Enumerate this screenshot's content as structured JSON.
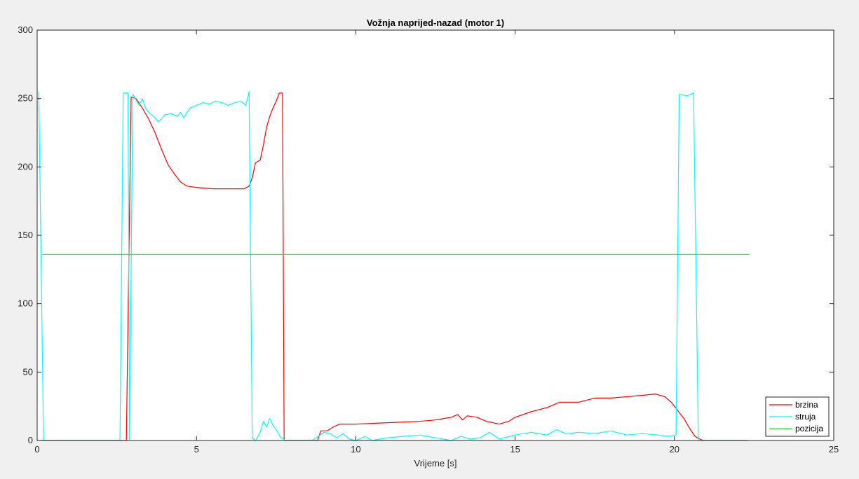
{
  "chart_data": {
    "type": "line",
    "title": "Vožnja naprijed-nazad (motor 1)",
    "xlabel": "Vrijeme [s]",
    "ylabel": "",
    "xlim": [
      0,
      25
    ],
    "ylim": [
      0,
      300
    ],
    "xticks": [
      0,
      5,
      10,
      15,
      20,
      25
    ],
    "yticks": [
      0,
      50,
      100,
      150,
      200,
      250,
      300
    ],
    "xtick_labels": [
      "0",
      "5",
      "10",
      "15",
      "20",
      "25"
    ],
    "ytick_labels": [
      "0",
      "50",
      "100",
      "150",
      "200",
      "250",
      "300"
    ],
    "grid": false,
    "legend_position": "bottom-right",
    "series": [
      {
        "name": "brzina",
        "color": "#ff0000",
        "points": [
          [
            0.1,
            0
          ],
          [
            2.7,
            0
          ],
          [
            2.8,
            0
          ],
          [
            2.95,
            251
          ],
          [
            3.1,
            250
          ],
          [
            3.3,
            243
          ],
          [
            3.5,
            235
          ],
          [
            3.7,
            225
          ],
          [
            3.9,
            213
          ],
          [
            4.1,
            202
          ],
          [
            4.3,
            195
          ],
          [
            4.5,
            189
          ],
          [
            4.7,
            186
          ],
          [
            5.0,
            185
          ],
          [
            5.5,
            184
          ],
          [
            6.0,
            184
          ],
          [
            6.3,
            184
          ],
          [
            6.5,
            184
          ],
          [
            6.65,
            186
          ],
          [
            6.75,
            192
          ],
          [
            6.85,
            203
          ],
          [
            7.0,
            205
          ],
          [
            7.1,
            216
          ],
          [
            7.2,
            229
          ],
          [
            7.3,
            237
          ],
          [
            7.4,
            243
          ],
          [
            7.5,
            248
          ],
          [
            7.6,
            254
          ],
          [
            7.7,
            254
          ],
          [
            7.75,
            0
          ],
          [
            8.8,
            0
          ],
          [
            8.9,
            7
          ],
          [
            9.1,
            7
          ],
          [
            9.3,
            10
          ],
          [
            9.5,
            12
          ],
          [
            10,
            12
          ],
          [
            11,
            13
          ],
          [
            12,
            14
          ],
          [
            12.5,
            15
          ],
          [
            13.0,
            17
          ],
          [
            13.2,
            19
          ],
          [
            13.35,
            15
          ],
          [
            13.5,
            18
          ],
          [
            13.8,
            17
          ],
          [
            14.1,
            14
          ],
          [
            14.5,
            12
          ],
          [
            14.8,
            14
          ],
          [
            15.0,
            17
          ],
          [
            15.5,
            21
          ],
          [
            16.0,
            24
          ],
          [
            16.4,
            28
          ],
          [
            16.7,
            28
          ],
          [
            17.0,
            28
          ],
          [
            17.5,
            31
          ],
          [
            18.0,
            31
          ],
          [
            18.5,
            32
          ],
          [
            19.0,
            33
          ],
          [
            19.4,
            34
          ],
          [
            19.7,
            32
          ],
          [
            19.9,
            28
          ],
          [
            20.1,
            22
          ],
          [
            20.3,
            16
          ],
          [
            20.5,
            8
          ],
          [
            20.65,
            3
          ],
          [
            20.8,
            1
          ],
          [
            20.9,
            0
          ],
          [
            22.3,
            0
          ]
        ]
      },
      {
        "name": "struja",
        "color": "#00ffff",
        "points": [
          [
            0.05,
            255
          ],
          [
            0.2,
            0
          ],
          [
            2.6,
            0
          ],
          [
            2.7,
            254
          ],
          [
            2.85,
            254
          ],
          [
            2.9,
            0
          ],
          [
            3.0,
            253
          ],
          [
            3.1,
            249
          ],
          [
            3.2,
            245
          ],
          [
            3.3,
            250
          ],
          [
            3.4,
            243
          ],
          [
            3.5,
            240
          ],
          [
            3.6,
            238
          ],
          [
            3.7,
            236
          ],
          [
            3.8,
            233
          ],
          [
            3.9,
            235
          ],
          [
            4.0,
            238
          ],
          [
            4.2,
            239
          ],
          [
            4.4,
            237
          ],
          [
            4.5,
            240
          ],
          [
            4.6,
            236
          ],
          [
            4.8,
            243
          ],
          [
            5.0,
            245
          ],
          [
            5.2,
            247
          ],
          [
            5.4,
            246
          ],
          [
            5.6,
            248
          ],
          [
            5.8,
            247
          ],
          [
            6.0,
            245
          ],
          [
            6.2,
            247
          ],
          [
            6.4,
            248
          ],
          [
            6.55,
            245
          ],
          [
            6.65,
            255
          ],
          [
            6.75,
            2
          ],
          [
            6.85,
            0
          ],
          [
            7.0,
            6
          ],
          [
            7.1,
            14
          ],
          [
            7.2,
            10
          ],
          [
            7.3,
            16
          ],
          [
            7.4,
            11
          ],
          [
            7.5,
            8
          ],
          [
            7.65,
            2
          ],
          [
            7.8,
            0
          ],
          [
            8.6,
            0
          ],
          [
            8.7,
            1
          ],
          [
            9.0,
            6
          ],
          [
            9.2,
            5
          ],
          [
            9.4,
            2
          ],
          [
            9.6,
            5
          ],
          [
            9.8,
            1
          ],
          [
            10.0,
            0
          ],
          [
            10.3,
            3
          ],
          [
            10.5,
            0
          ],
          [
            11.0,
            2
          ],
          [
            11.5,
            3
          ],
          [
            12.0,
            4
          ],
          [
            12.5,
            2
          ],
          [
            13.0,
            0
          ],
          [
            13.3,
            3
          ],
          [
            13.6,
            1
          ],
          [
            13.9,
            2
          ],
          [
            14.2,
            6
          ],
          [
            14.5,
            1
          ],
          [
            15.0,
            4
          ],
          [
            15.5,
            6
          ],
          [
            16.0,
            4
          ],
          [
            16.3,
            8
          ],
          [
            16.6,
            5
          ],
          [
            17.0,
            6
          ],
          [
            17.5,
            5
          ],
          [
            18.0,
            7
          ],
          [
            18.5,
            4
          ],
          [
            19.0,
            5
          ],
          [
            19.5,
            4
          ],
          [
            19.8,
            3
          ],
          [
            20.05,
            4
          ],
          [
            20.15,
            253
          ],
          [
            20.4,
            252
          ],
          [
            20.6,
            254
          ],
          [
            20.75,
            0
          ],
          [
            22.3,
            0
          ]
        ]
      },
      {
        "name": "pozicija",
        "color": "#00ff00",
        "points": [
          [
            0.15,
            136
          ],
          [
            22.35,
            136
          ]
        ]
      }
    ]
  }
}
